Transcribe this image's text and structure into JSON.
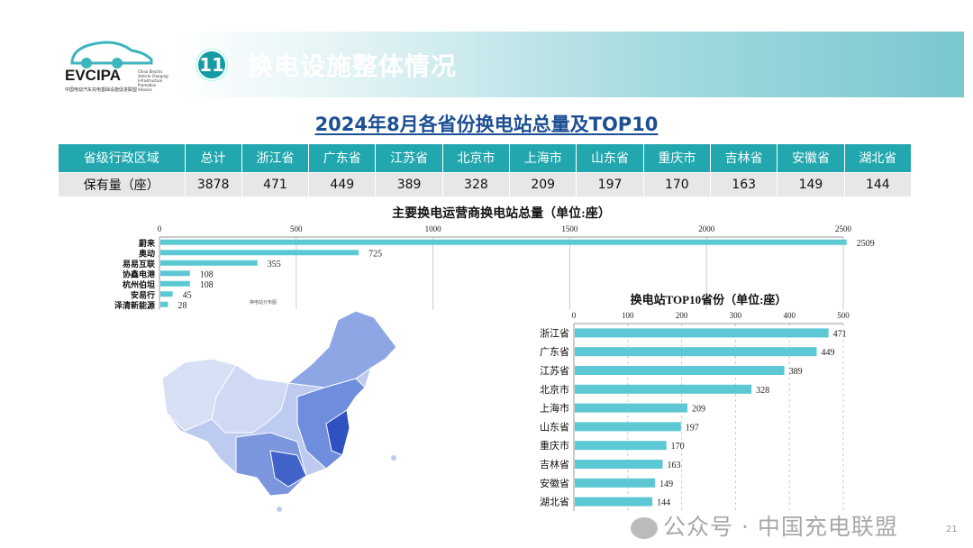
{
  "header": {
    "section_number": "11",
    "title": "换电设施整体情况"
  },
  "logo": {
    "brand": "EVCIPA",
    "subtitle_cn": "中国电动汽车充电基础设施促进联盟",
    "subtitle_en": "China Electric Vehicle Charging Infrastructure Promotion Alliance"
  },
  "subtitle": "2024年8月各省份换电站总量及TOP10",
  "table": {
    "headers": [
      "省级行政区域",
      "总计",
      "浙江省",
      "广东省",
      "江苏省",
      "北京市",
      "上海市",
      "山东省",
      "重庆市",
      "吉林省",
      "安徽省",
      "湖北省"
    ],
    "row": [
      "保有量（座）",
      "3878",
      "471",
      "449",
      "389",
      "328",
      "209",
      "197",
      "170",
      "163",
      "149",
      "144"
    ]
  },
  "chart_data": [
    {
      "type": "bar",
      "orientation": "horizontal",
      "title": "主要换电运营商换电站总量（单位:座）",
      "categories": [
        "蔚来",
        "奥动",
        "易易互联",
        "协鑫电港",
        "杭州伯坦",
        "安易行",
        "泽清新能源"
      ],
      "values": [
        2509,
        725,
        355,
        108,
        108,
        45,
        28
      ],
      "xlim": [
        0,
        2500
      ],
      "ticks": [
        0,
        500,
        1000,
        1500,
        2000,
        2500
      ],
      "grid": true,
      "color": "#5cc8d4",
      "note": "换电站分布图"
    },
    {
      "type": "bar",
      "orientation": "horizontal",
      "title": "换电站TOP10省份（单位:座）",
      "categories": [
        "浙江省",
        "广东省",
        "江苏省",
        "北京市",
        "上海市",
        "山东省",
        "重庆市",
        "吉林省",
        "安徽省",
        "湖北省"
      ],
      "values": [
        471,
        449,
        389,
        328,
        209,
        197,
        170,
        163,
        149,
        144
      ],
      "xlim": [
        0,
        500
      ],
      "ticks": [
        0,
        100,
        200,
        300,
        400,
        500
      ],
      "grid": true,
      "color": "#5cc8d4"
    }
  ],
  "watermark": "公众号 · 中国充电联盟",
  "page_number": "21",
  "colors": {
    "accent": "#22a7ae",
    "bar": "#5cc8d4",
    "subtitle": "#1d4f93"
  }
}
